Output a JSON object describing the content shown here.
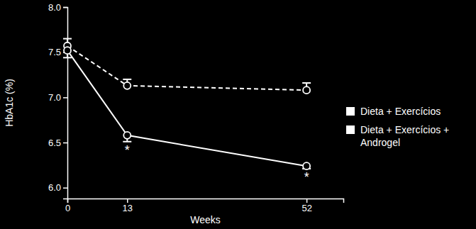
{
  "chart_data": {
    "type": "line",
    "x_label": "Weeks",
    "y_label": "HbA1c (%)",
    "x": [
      0,
      13,
      52
    ],
    "xlim": [
      0,
      60
    ],
    "xticks": [
      0,
      13,
      52
    ],
    "ylim": [
      5.88,
      8.0
    ],
    "yticks": [
      {
        "value": 6.0,
        "label": "6.0"
      },
      6.5,
      {
        "value": 7.0,
        "label": "7.0"
      },
      7.5,
      {
        "value": 8.0,
        "label": "8.0"
      }
    ],
    "grid": false,
    "legend": "right",
    "series": [
      {
        "name": "Dieta + Exercícios",
        "color": "#ffffff",
        "marker": "circle",
        "line_style": "dashed",
        "values": [
          7.57,
          7.13,
          7.08
        ],
        "errors": [
          0.08,
          0.07,
          0.08
        ]
      },
      {
        "name": "Dieta + Exercícios + Androgel",
        "color": "#ffffff",
        "marker": "circle",
        "line_style": "solid",
        "values": [
          7.52,
          6.58,
          6.24
        ],
        "errors": [
          0.08,
          0.07,
          0.03
        ]
      }
    ],
    "annotations": [
      {
        "text": "*",
        "x": 13
      },
      {
        "text": "*",
        "x": 52
      }
    ]
  }
}
